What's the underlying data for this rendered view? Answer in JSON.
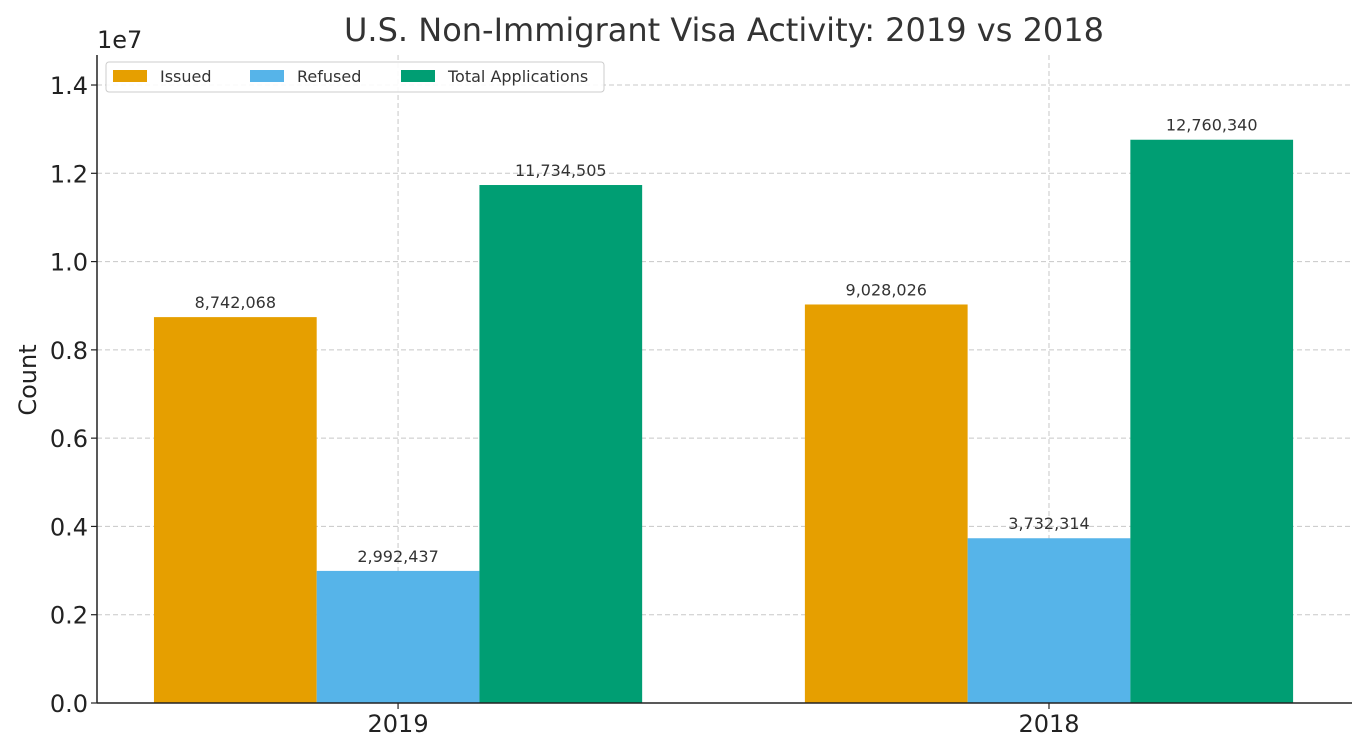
{
  "chart_data": {
    "type": "bar",
    "title": "U.S. Non-Immigrant Visa Activity: 2019 vs 2018",
    "xlabel": "",
    "ylabel": "Count",
    "y_offset_label": "1e7",
    "categories": [
      "2019",
      "2018"
    ],
    "series": [
      {
        "name": "Issued",
        "values": [
          8742068,
          9028026
        ],
        "color": "#E69F00",
        "labels": [
          "8,742,068",
          "9,028,026"
        ]
      },
      {
        "name": "Refused",
        "values": [
          2992437,
          3732314
        ],
        "color": "#56B4E9",
        "labels": [
          "2,992,437",
          "3,732,314"
        ]
      },
      {
        "name": "Total Applications",
        "values": [
          11734505,
          12760340
        ],
        "color": "#009E73",
        "labels": [
          "11,734,505",
          "12,760,340"
        ]
      }
    ],
    "ylim": [
      0,
      14680000
    ],
    "yticks": [
      0,
      2000000,
      4000000,
      6000000,
      8000000,
      10000000,
      12000000,
      14000000
    ],
    "ytick_labels": [
      "0.0",
      "0.2",
      "0.4",
      "0.6",
      "0.8",
      "1.0",
      "1.2",
      "1.4"
    ],
    "grid": true,
    "legend_position": "top-left"
  }
}
